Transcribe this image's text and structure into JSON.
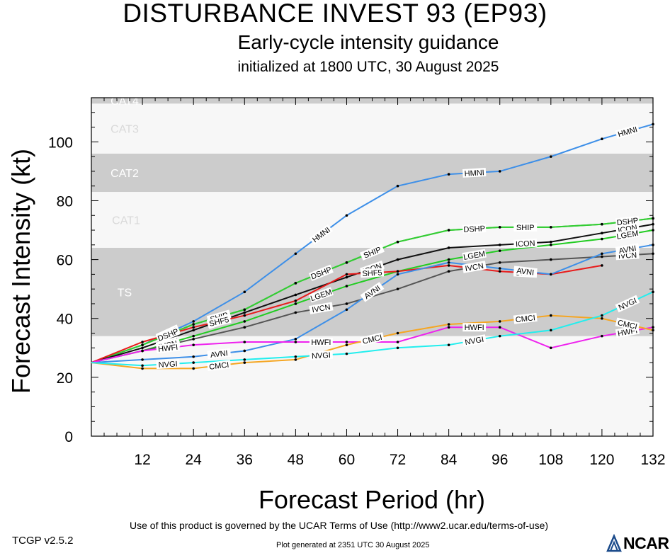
{
  "header": {
    "title": "DISTURBANCE INVEST 93 (EP93)",
    "subtitle": "Early-cycle intensity guidance",
    "init": "initialized at 1800 UTC, 30 August 2025"
  },
  "footer": {
    "terms": "Use of this product is governed by the UCAR Terms of Use (http://www2.ucar.edu/terms-of-use)",
    "version": "TCGP v2.5.2",
    "generated": "Plot generated at 2351 UTC   30 August 2025",
    "logo": "NCAR"
  },
  "chart_data": {
    "type": "line",
    "xlabel": "Forecast Period (hr)",
    "ylabel": "Forecast Intensity (kt)",
    "xlim": [
      0,
      132
    ],
    "ylim": [
      0,
      115
    ],
    "xticks": [
      12,
      24,
      36,
      48,
      60,
      72,
      84,
      96,
      108,
      120,
      132
    ],
    "yticks": [
      0,
      20,
      40,
      60,
      80,
      100
    ],
    "bands": [
      {
        "label": "TS",
        "from": 34,
        "to": 64,
        "color": "#cccccc"
      },
      {
        "label": "CAT1",
        "from": 64,
        "to": 83,
        "color": "#f7f7f7"
      },
      {
        "label": "CAT2",
        "from": 83,
        "to": 96,
        "color": "#cccccc"
      },
      {
        "label": "CAT3",
        "from": 96,
        "to": 113,
        "color": "#f7f7f7"
      },
      {
        "label": "CAT4",
        "from": 113,
        "to": 115,
        "color": "#cccccc"
      }
    ],
    "background_color": "#f7f7f7",
    "series": [
      {
        "name": "HMNI",
        "color": "#3d8fe8",
        "x": [
          0,
          12,
          24,
          36,
          48,
          60,
          72,
          84,
          96,
          108,
          120,
          132
        ],
        "values": [
          25,
          31,
          39,
          49,
          62,
          75,
          85,
          89,
          90,
          95,
          101,
          106
        ]
      },
      {
        "name": "SHIP",
        "color": "#33cc33",
        "x": [
          0,
          12,
          24,
          36,
          48,
          60,
          72,
          84,
          96,
          108,
          120,
          132
        ],
        "values": [
          25,
          31,
          38,
          43,
          52,
          59,
          66,
          70,
          71,
          71,
          72,
          74
        ]
      },
      {
        "name": "DSHP",
        "color": "#33cc33",
        "x": [
          0,
          12,
          24,
          36,
          48,
          60,
          72,
          84,
          96,
          108,
          120,
          132
        ],
        "values": [
          25,
          31,
          38,
          43,
          52,
          59,
          66,
          70,
          71,
          71,
          72,
          74
        ]
      },
      {
        "name": "ICON",
        "color": "#111111",
        "x": [
          0,
          12,
          24,
          36,
          48,
          60,
          72,
          84,
          96,
          108,
          120,
          132
        ],
        "values": [
          25,
          30,
          36,
          42,
          48,
          54,
          60,
          64,
          65,
          66,
          69,
          72
        ]
      },
      {
        "name": "LGEM",
        "color": "#22cc22",
        "x": [
          0,
          12,
          24,
          36,
          48,
          60,
          72,
          84,
          96,
          108,
          120,
          132
        ],
        "values": [
          25,
          29,
          34,
          39,
          45,
          51,
          56,
          60,
          63,
          65,
          67,
          70
        ]
      },
      {
        "name": "SHF5",
        "color": "#e81b1b",
        "x": [
          0,
          12,
          24,
          36,
          48,
          60,
          72,
          84,
          96,
          108,
          120
        ],
        "values": [
          25,
          32,
          37,
          41,
          46,
          55,
          56,
          58,
          56,
          55,
          58
        ]
      },
      {
        "name": "IVCN",
        "color": "#555555",
        "x": [
          0,
          12,
          24,
          36,
          48,
          60,
          72,
          84,
          96,
          108,
          120,
          132
        ],
        "values": [
          25,
          29,
          33,
          37,
          42,
          45,
          50,
          56,
          59,
          60,
          61,
          62
        ]
      },
      {
        "name": "AVNI",
        "color": "#3d8fe8",
        "x": [
          0,
          12,
          24,
          36,
          48,
          60,
          72,
          84,
          96,
          108,
          120,
          132
        ],
        "values": [
          25,
          26,
          27,
          29,
          33,
          43,
          55,
          59,
          57,
          55,
          62,
          65
        ]
      },
      {
        "name": "HWFI",
        "color": "#ee22ee",
        "x": [
          0,
          12,
          24,
          36,
          48,
          60,
          72,
          84,
          96,
          108,
          120,
          132
        ],
        "values": [
          25,
          29,
          31,
          32,
          32,
          32,
          32,
          37,
          37,
          30,
          34,
          37
        ]
      },
      {
        "name": "CMCI",
        "color": "#f5a623",
        "x": [
          0,
          12,
          24,
          36,
          48,
          60,
          72,
          84,
          96,
          108,
          120,
          132
        ],
        "values": [
          25,
          23,
          23,
          25,
          26,
          31,
          35,
          38,
          39,
          41,
          40,
          36
        ]
      },
      {
        "name": "NVGI",
        "color": "#22eeee",
        "x": [
          0,
          12,
          24,
          36,
          48,
          60,
          72,
          84,
          96,
          108,
          120,
          132
        ],
        "values": [
          25,
          24,
          25,
          26,
          27,
          28,
          30,
          31,
          34,
          36,
          41,
          49
        ]
      }
    ]
  }
}
